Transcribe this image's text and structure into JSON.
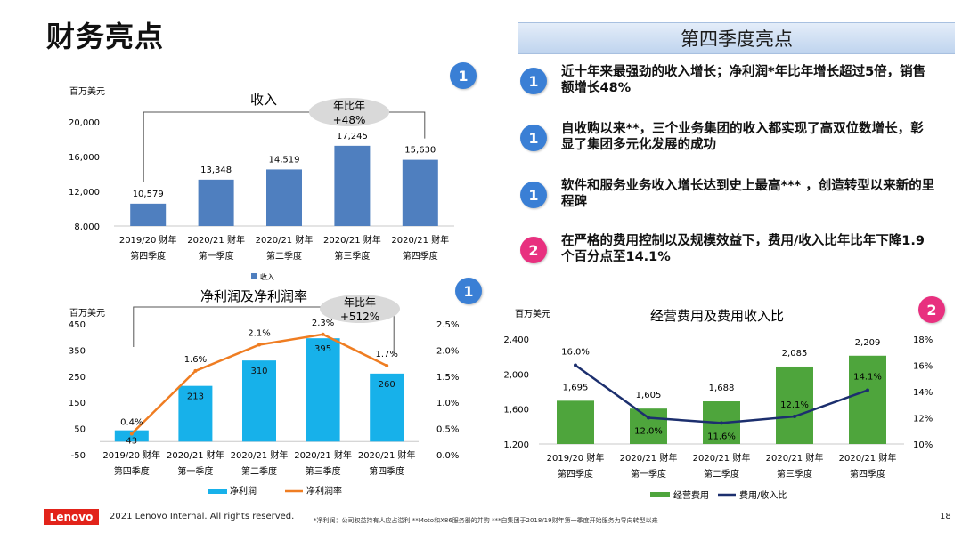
{
  "page_title": "财务亮点",
  "highlights": {
    "header": "第四季度亮点",
    "items": [
      {
        "badge": "1",
        "text": "近十年来最强劲的收入增长；净利润*年比年增长超过5倍，销售额增长48%"
      },
      {
        "badge": "1",
        "text": "自收购以来**，三个业务集团的收入都实现了高双位数增长，彰显了集团多元化发展的成功"
      },
      {
        "badge": "1",
        "text": "软件和服务业务收入增长达到史上最高*** ，创造转型以来新的里程碑"
      },
      {
        "badge": "2",
        "text": "在严格的费用控制以及规模效益下，费用/收入比年比年下降1.9个百分点至14.1%"
      }
    ]
  },
  "chart_badges": {
    "revenue": "1",
    "profit": "1",
    "opex": "2"
  },
  "colors": {
    "bar_blue": "#4f7fbf",
    "bar_cyan": "#17b1ea",
    "line_orange": "#ef7d22",
    "bar_green": "#4ea53c",
    "line_navy": "#1c2f6e",
    "badge_blue": "#3a7fd5",
    "badge_pink": "#e8307f",
    "lenovo_red": "#e2231a"
  },
  "chart_data": [
    {
      "type": "bar",
      "title": "收入",
      "ylabel": "百万美元",
      "categories": [
        [
          "2019/20 财年",
          "第四季度"
        ],
        [
          "2020/21 财年",
          "第一季度"
        ],
        [
          "2020/21 财年",
          "第二季度"
        ],
        [
          "2020/21 财年",
          "第三季度"
        ],
        [
          "2020/21 财年",
          "第四季度"
        ]
      ],
      "series": [
        {
          "name": "收入",
          "values": [
            10579,
            13348,
            14519,
            17245,
            15630
          ]
        }
      ],
      "value_labels": [
        "10,579",
        "13,348",
        "14,519",
        "17,245",
        "15,630"
      ],
      "ylim": [
        8000,
        20000
      ],
      "yticks": [
        8000,
        12000,
        16000,
        20000
      ],
      "ytick_labels": [
        "8,000",
        "12,000",
        "16,000",
        "20,000"
      ],
      "annotation": [
        "年比年",
        "+48%"
      ],
      "legend": "bottom-left",
      "grid": false
    },
    {
      "type": "bar+line",
      "title": "净利润及净利润率",
      "ylabel": "百万美元",
      "categories": [
        [
          "2019/20 财年",
          "第四季度"
        ],
        [
          "2020/21 财年",
          "第一季度"
        ],
        [
          "2020/21 财年",
          "第二季度"
        ],
        [
          "2020/21 财年",
          "第三季度"
        ],
        [
          "2020/21 财年",
          "第四季度"
        ]
      ],
      "series": [
        {
          "name": "净利润",
          "type": "bar",
          "axis": "left",
          "values": [
            43,
            213,
            310,
            395,
            260
          ],
          "value_labels": [
            "43",
            "213",
            "310",
            "395",
            "260"
          ]
        },
        {
          "name": "净利润率",
          "type": "line",
          "axis": "right",
          "values": [
            0.4,
            1.6,
            2.1,
            2.3,
            1.7
          ],
          "value_labels": [
            "0.4%",
            "1.6%",
            "2.1%",
            "2.3%",
            "1.7%"
          ]
        }
      ],
      "ylim": [
        -50,
        450
      ],
      "yticks": [
        -50,
        50,
        150,
        250,
        350,
        450
      ],
      "ytick_labels": [
        "-50",
        "50",
        "150",
        "250",
        "350",
        "450"
      ],
      "y2lim": [
        0,
        2.5
      ],
      "y2ticks": [
        0,
        0.5,
        1.0,
        1.5,
        2.0,
        2.5
      ],
      "y2tick_labels": [
        "0.0%",
        "0.5%",
        "1.0%",
        "1.5%",
        "2.0%",
        "2.5%"
      ],
      "annotation": [
        "年比年",
        "+512%"
      ],
      "legend": "bottom",
      "grid": false
    },
    {
      "type": "bar+line",
      "title": "经营费用及费用收入比",
      "ylabel": "百万美元",
      "categories": [
        [
          "2019/20 财年",
          "第四季度"
        ],
        [
          "2020/21 财年",
          "第一季度"
        ],
        [
          "2020/21 财年",
          "第二季度"
        ],
        [
          "2020/21 财年",
          "第三季度"
        ],
        [
          "2020/21 财年",
          "第四季度"
        ]
      ],
      "series": [
        {
          "name": "经营费用",
          "type": "bar",
          "axis": "left",
          "values": [
            1695,
            1605,
            1688,
            2085,
            2209
          ],
          "value_labels": [
            "1,695",
            "1,605",
            "1,688",
            "2,085",
            "2,209"
          ]
        },
        {
          "name": "费用/收入比",
          "type": "line",
          "axis": "right",
          "values": [
            16.0,
            12.0,
            11.6,
            12.1,
            14.1
          ],
          "value_labels": [
            "16.0%",
            "12.0%",
            "11.6%",
            "12.1%",
            "14.1%"
          ]
        }
      ],
      "ylim": [
        1200,
        2400
      ],
      "yticks": [
        1200,
        1600,
        2000,
        2400
      ],
      "ytick_labels": [
        "1,200",
        "1,600",
        "2,000",
        "2,400"
      ],
      "y2lim": [
        10,
        18
      ],
      "y2ticks": [
        10,
        12,
        14,
        16,
        18
      ],
      "y2tick_labels": [
        "10%",
        "12%",
        "14%",
        "16%",
        "18%"
      ],
      "legend": "bottom",
      "grid": false
    }
  ],
  "footer": {
    "logo": "Lenovo",
    "copyright": "2021 Lenovo Internal. All rights reserved.",
    "notes": "*净利润：公司权益持有人应占溢利   **Moto和X86服务器的并购   ***自集团于2018/19财年第一季度开始服务为导向转型以来",
    "page_number": "18"
  }
}
